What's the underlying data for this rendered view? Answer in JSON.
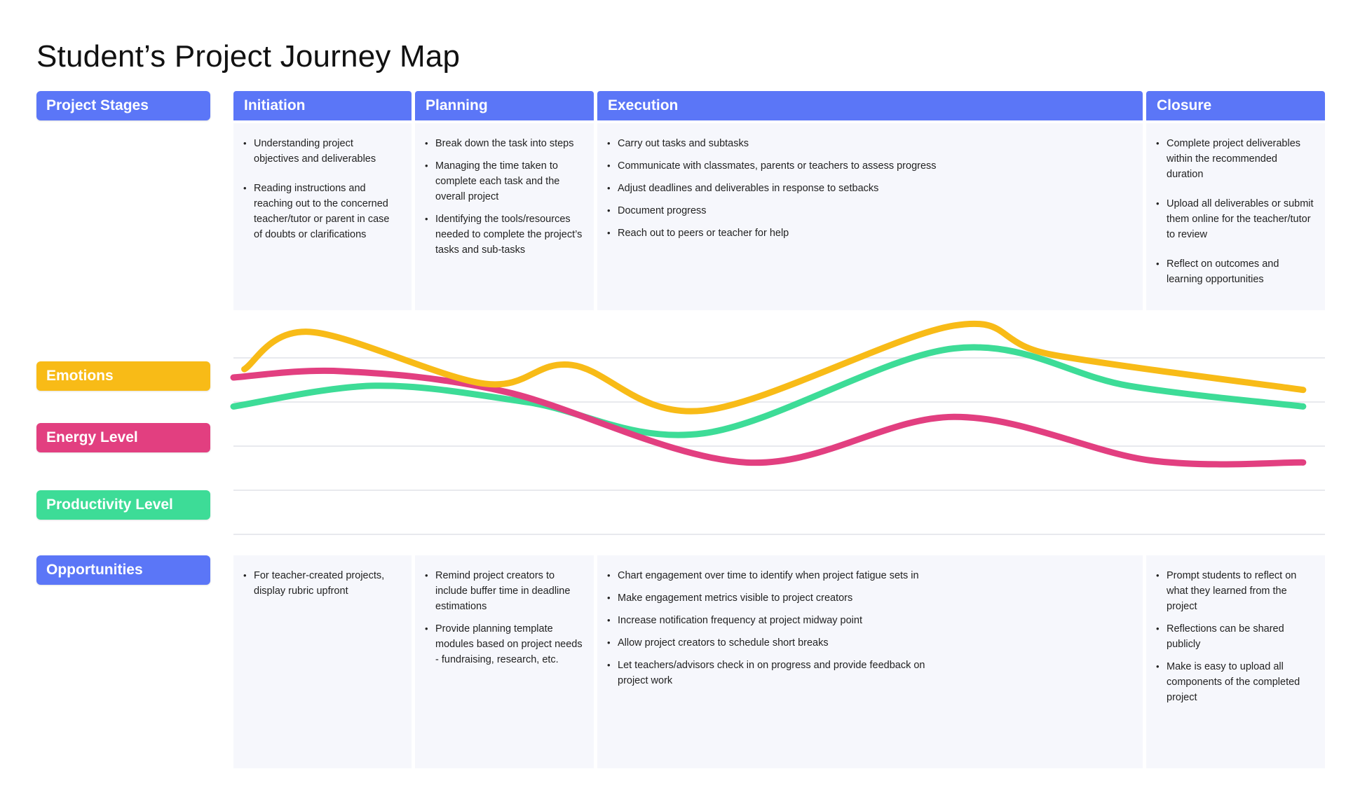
{
  "title": "Student’s Project Journey Map",
  "row_labels": {
    "stages": "Project Stages",
    "emotions": "Emotions",
    "energy": "Energy Level",
    "productivity": "Productivity Level",
    "opportunities": "Opportunities"
  },
  "colors": {
    "stage_blue": "#5b76f7",
    "emotions": "#f8bb17",
    "energy": "#e23f80",
    "productivity": "#3ddc97",
    "panel_bg": "#f6f7fc"
  },
  "stages": [
    {
      "name": "Initiation",
      "activities": [
        "Understanding project objectives and deliverables",
        "Reading instructions and reaching out to the concerned teacher/tutor or parent in case of doubts or clarifications"
      ],
      "opportunities": [
        "For teacher-created projects, display rubric upfront"
      ]
    },
    {
      "name": "Planning",
      "activities": [
        "Break down the task into steps",
        "Managing the time taken to complete each task and the overall project",
        "Identifying the tools/resources needed to complete the project’s tasks and sub-tasks"
      ],
      "opportunities": [
        "Remind project creators to include buffer time in deadline estimations",
        "Provide planning template modules based on project needs - fundraising, research, etc."
      ]
    },
    {
      "name": "Execution",
      "activities": [
        "Carry out tasks and subtasks",
        "Communicate with classmates, parents or teachers to assess progress",
        "Adjust deadlines and deliverables in response to setbacks",
        "Document progress",
        "Reach out to peers or teacher for help"
      ],
      "opportunities": [
        "Chart engagement over time to identify when project fatigue sets in",
        "Make engagement metrics visible to project creators",
        "Increase notification frequency at project midway point",
        "Allow project creators to schedule short breaks",
        "Let teachers/advisors check in on progress and provide feedback on project work"
      ]
    },
    {
      "name": "Closure",
      "activities": [
        "Complete project deliverables within the recommended duration",
        "Upload all deliverables or submit them online for the teacher/tutor to review",
        "Reflect on outcomes and learning opportunities"
      ],
      "opportunities": [
        "Prompt students to reflect on what they learned from the project",
        "Reflections can be shared publicly",
        "Make is easy to upload all components of the completed project"
      ]
    }
  ],
  "chart_data": {
    "type": "line",
    "x_range": [
      0,
      100
    ],
    "y_range": [
      0,
      100
    ],
    "grid": true,
    "series": [
      {
        "key": "emotions",
        "x": [
          1,
          7,
          23,
          31,
          43,
          66,
          75,
          98
        ],
        "y": [
          78,
          96,
          71,
          80,
          58,
          99,
          85,
          68
        ]
      },
      {
        "key": "energy",
        "x": [
          0,
          10,
          25,
          47,
          66,
          84,
          98
        ],
        "y": [
          74,
          77,
          67,
          33,
          55,
          34,
          33
        ]
      },
      {
        "key": "productivity",
        "x": [
          0,
          13,
          27,
          43,
          66,
          82,
          98
        ],
        "y": [
          60,
          70,
          62,
          47,
          88,
          70,
          60
        ]
      }
    ]
  }
}
